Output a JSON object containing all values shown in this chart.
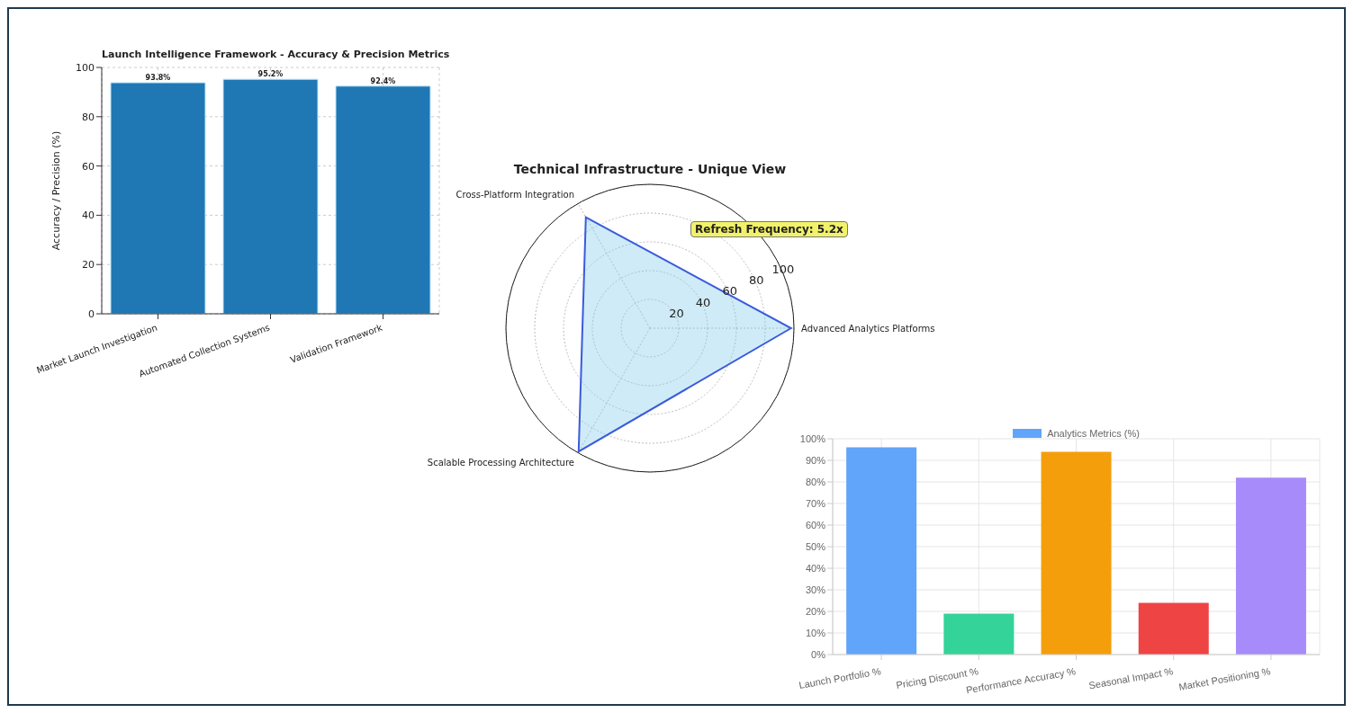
{
  "chart_data": [
    {
      "type": "bar",
      "title": "Launch Intelligence Framework - Accuracy & Precision Metrics",
      "ylabel": "Accuracy / Precision (%)",
      "categories": [
        "Market Launch Investigation",
        "Automated Collection Systems",
        "Validation Framework"
      ],
      "values": [
        93.8,
        95.2,
        92.4
      ],
      "value_labels": [
        "93.8%",
        "95.2%",
        "92.4%"
      ],
      "color": "#1f77b4",
      "ylim": [
        0,
        100
      ],
      "yticks": [
        0,
        20,
        40,
        60,
        80,
        100
      ],
      "grid": true
    },
    {
      "type": "radar",
      "title": "Technical Infrastructure - Unique View",
      "categories": [
        "Advanced Analytics Platforms",
        "Scalable Processing Architecture",
        "Cross-Platform Integration"
      ],
      "series": [
        {
          "color": "#3b5bdb",
          "values": [
            98,
            99,
            89
          ]
        }
      ],
      "ylim": [
        0,
        100
      ],
      "yticks": [
        20,
        40,
        60,
        80,
        100
      ],
      "grid": true,
      "annotations": [
        "Refresh Frequency: 5.2x"
      ]
    },
    {
      "type": "bar",
      "categories": [
        "Launch Portfolio %",
        "Pricing Discount %",
        "Performance Accuracy %",
        "Seasonal Impact %",
        "Market Positioning %"
      ],
      "series": [
        {
          "name": "Analytics Metrics (%)",
          "values": [
            96,
            19,
            94,
            24,
            82
          ]
        }
      ],
      "colors": [
        "#60a5fa",
        "#34d399",
        "#f59e0b",
        "#ef4444",
        "#a78bfa"
      ],
      "ylim": [
        0,
        100
      ],
      "yticks": [
        {
          "value": 0,
          "label": "0%"
        },
        {
          "value": 10,
          "label": "10%"
        },
        {
          "value": 20,
          "label": "20%"
        },
        {
          "value": 30,
          "label": "30%"
        },
        {
          "value": 40,
          "label": "40%"
        },
        {
          "value": 50,
          "label": "50%"
        },
        {
          "value": 60,
          "label": "60%"
        },
        {
          "value": 70,
          "label": "70%"
        },
        {
          "value": 80,
          "label": "80%"
        },
        {
          "value": 90,
          "label": "90%"
        },
        {
          "value": 100,
          "label": "100%"
        }
      ],
      "grid": true,
      "legend": "top"
    }
  ]
}
